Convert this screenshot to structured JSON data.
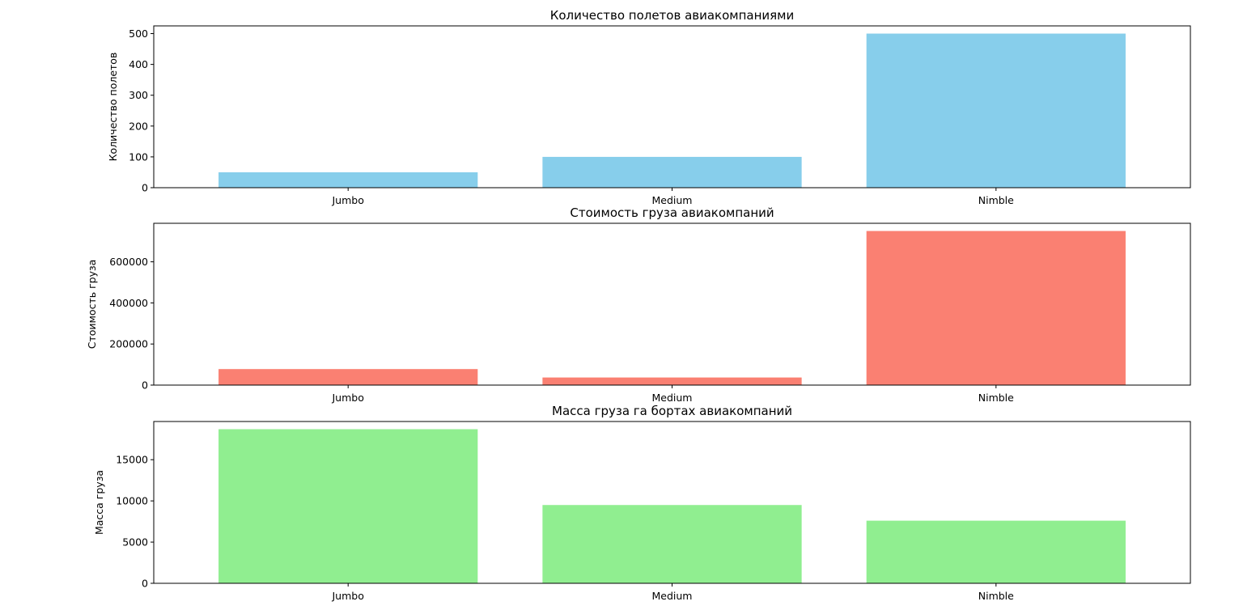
{
  "chart_data": [
    {
      "type": "bar",
      "title": "Количество полетов авиакомпаниями",
      "xlabel": "",
      "ylabel": "Количество полетов",
      "categories": [
        "Jumbo",
        "Medium",
        "Nimble"
      ],
      "values": [
        50,
        100,
        500
      ],
      "ylim": [
        0,
        525
      ],
      "yticks": [
        0,
        100,
        200,
        300,
        400,
        500
      ],
      "ytick_labels": [
        "0",
        "100",
        "200",
        "300",
        "400",
        "500"
      ],
      "color": "#87ceeb",
      "grid": false
    },
    {
      "type": "bar",
      "title": "Стоимость груза авиакомпаний",
      "xlabel": "",
      "ylabel": "Стоимость груза",
      "categories": [
        "Jumbo",
        "Medium",
        "Nimble"
      ],
      "values": [
        78000,
        37000,
        750000
      ],
      "ylim": [
        0,
        787500
      ],
      "yticks": [
        0,
        200000,
        400000,
        600000
      ],
      "ytick_labels": [
        "0",
        "200000",
        "400000",
        "600000"
      ],
      "color": "#fa8072",
      "grid": false
    },
    {
      "type": "bar",
      "title": "Масса груза га бортах авиакомпаний",
      "xlabel": "",
      "ylabel": "Масса груза",
      "categories": [
        "Jumbo",
        "Medium",
        "Nimble"
      ],
      "values": [
        18700,
        9500,
        7600
      ],
      "ylim": [
        0,
        19635
      ],
      "yticks": [
        0,
        5000,
        10000,
        15000
      ],
      "ytick_labels": [
        "0",
        "5000",
        "10000",
        "15000"
      ],
      "color": "#90ee90",
      "grid": false
    }
  ]
}
